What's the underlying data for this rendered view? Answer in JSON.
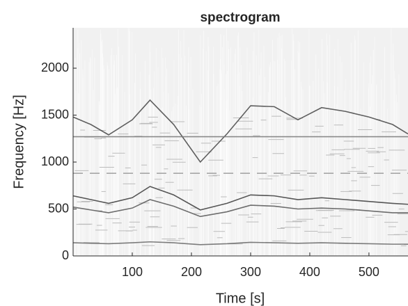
{
  "chart_data": {
    "type": "spectrogram",
    "title": "spectrogram",
    "xlabel": "Time  [s]",
    "ylabel": "Frequency [Hz]",
    "xlim": [
      0,
      566
    ],
    "ylim": [
      0,
      2430
    ],
    "xticks": [
      100,
      200,
      300,
      400,
      500
    ],
    "yticks": [
      0,
      500,
      1000,
      1500,
      2000
    ],
    "x": [
      0,
      30,
      60,
      100,
      130,
      170,
      215,
      260,
      300,
      340,
      380,
      420,
      460,
      500,
      540,
      566
    ],
    "series": [
      {
        "color": "#3a3a3a",
        "values": [
          640,
          600,
          560,
          620,
          740,
          650,
          490,
          560,
          650,
          640,
          600,
          620,
          600,
          580,
          560,
          550
        ]
      },
      {
        "color": "#555555",
        "values": [
          520,
          490,
          460,
          510,
          600,
          530,
          420,
          470,
          540,
          530,
          500,
          510,
          500,
          480,
          460,
          460
        ]
      },
      {
        "color": "#444444",
        "values": [
          1480,
          1400,
          1290,
          1450,
          1660,
          1400,
          1000,
          1300,
          1600,
          1590,
          1450,
          1580,
          1540,
          1480,
          1400,
          1300
        ]
      },
      {
        "color": "#777777",
        "values": [
          1270,
          1270,
          1270,
          1270,
          1270,
          1270,
          1270,
          1270,
          1270,
          1270,
          1270,
          1270,
          1270,
          1270,
          1270,
          1270
        ]
      },
      {
        "color": "#999999",
        "values": [
          880,
          880,
          880,
          880,
          880,
          880,
          880,
          880,
          880,
          880,
          880,
          880,
          880,
          880,
          880,
          880
        ]
      },
      {
        "color": "#666666",
        "values": [
          140,
          135,
          130,
          140,
          150,
          140,
          120,
          130,
          145,
          140,
          135,
          140,
          135,
          130,
          125,
          125
        ]
      }
    ]
  }
}
